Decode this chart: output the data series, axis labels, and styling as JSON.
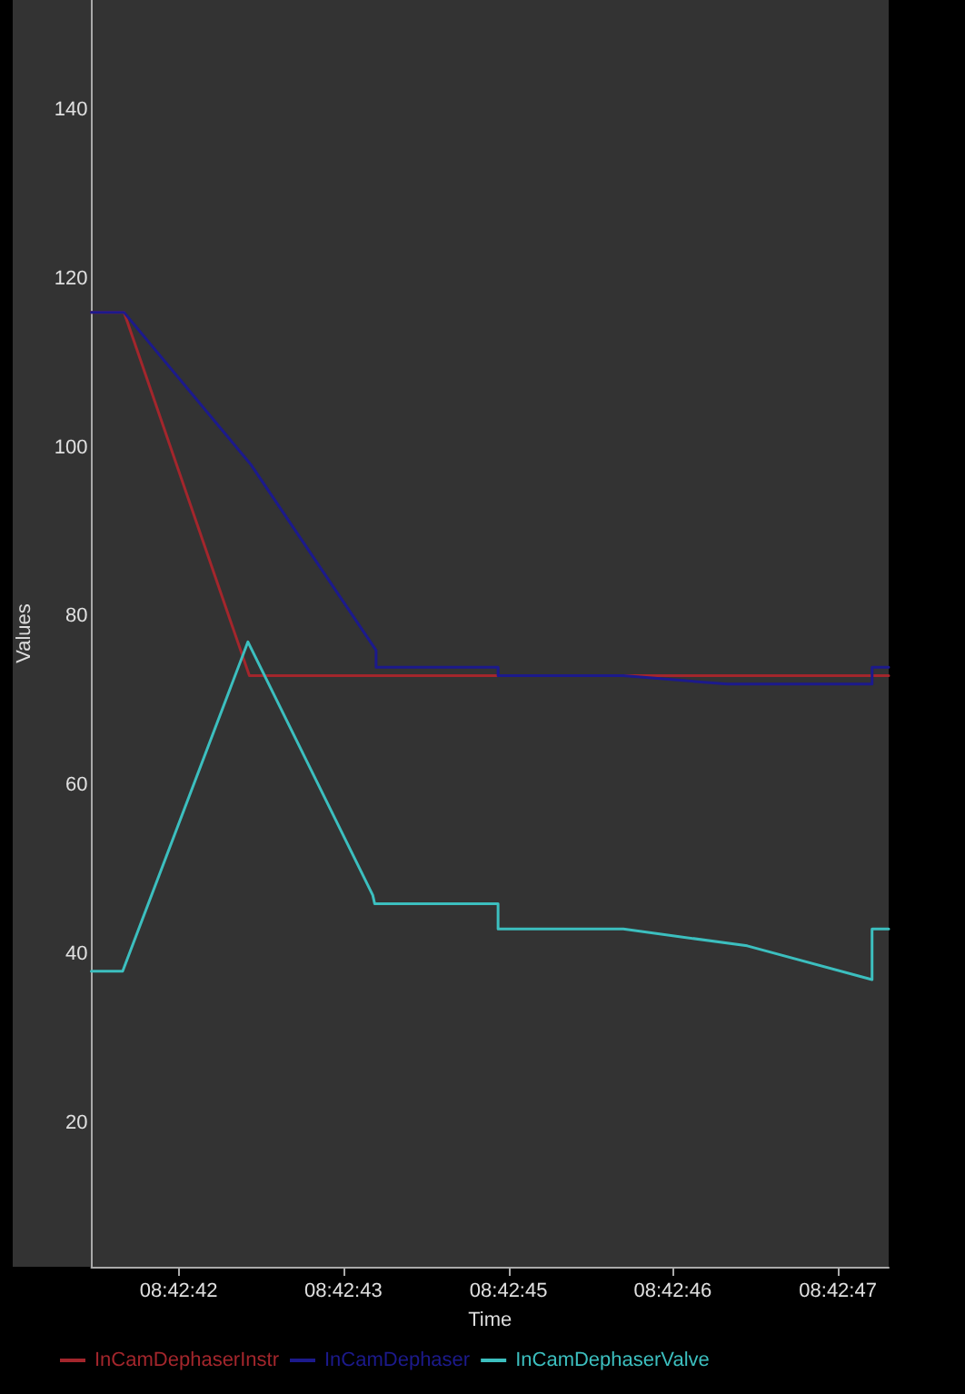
{
  "chart_data": {
    "type": "line",
    "xlabel": "Time",
    "ylabel": "Values",
    "xlim": [
      8.711483,
      8.713163
    ],
    "ylim": [
      3,
      153
    ],
    "xticks": [
      {
        "value": 8.711667,
        "label": "08:42:42"
      },
      {
        "value": 8.712014,
        "label": "08:42:43"
      },
      {
        "value": 8.712362,
        "label": "08:42:45"
      },
      {
        "value": 8.712708,
        "label": "08:42:46"
      },
      {
        "value": 8.713056,
        "label": "08:42:47"
      }
    ],
    "yticks": [
      20,
      40,
      60,
      80,
      100,
      120,
      140
    ],
    "grid": false,
    "legend": "bottom left",
    "marker": "none",
    "line_style": "solid",
    "series": [
      {
        "name": "InCamDephaserInstr",
        "color": "#a3262c",
        "x": [
          8.711483,
          8.711552,
          8.711816,
          8.713163
        ],
        "values": [
          116,
          116,
          73,
          73
        ]
      },
      {
        "name": "InCamDephaser",
        "color": "#1c1a8c",
        "x": [
          8.711483,
          8.711552,
          8.711819,
          8.712083,
          8.712083,
          8.71234,
          8.71234,
          8.712604,
          8.712823,
          8.713128,
          8.713128,
          8.713163
        ],
        "values": [
          116,
          116,
          98,
          76,
          74,
          74,
          73,
          73,
          72,
          72,
          74,
          74
        ]
      },
      {
        "name": "InCamDephaserValve",
        "color": "#3cbfbf",
        "x": [
          8.711483,
          8.711549,
          8.711813,
          8.712076,
          8.71208,
          8.71234,
          8.71234,
          8.712604,
          8.712865,
          8.713128,
          8.713128,
          8.713163
        ],
        "values": [
          38,
          38,
          77,
          47,
          46,
          46,
          43,
          43,
          41,
          37,
          43,
          43
        ]
      }
    ]
  }
}
